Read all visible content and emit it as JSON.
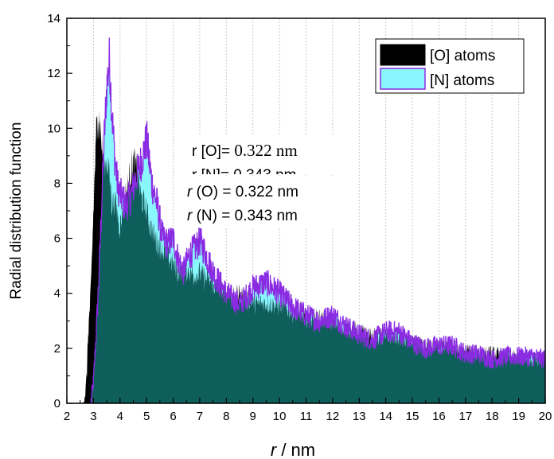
{
  "chart_data": {
    "type": "area",
    "xlabel_italic": "r",
    "xlabel_rest": " / nm",
    "ylabel": "Radial distribution function",
    "xlim": [
      2,
      20
    ],
    "ylim": [
      0,
      14
    ],
    "x_ticks": [
      "2",
      "3",
      "4",
      "5",
      "6",
      "7",
      "8",
      "9",
      "10",
      "11",
      "12",
      "13",
      "14",
      "15",
      "16",
      "17",
      "18",
      "19",
      "20"
    ],
    "y_ticks": [
      "0",
      "2",
      "4",
      "6",
      "8",
      "10",
      "12",
      "14"
    ],
    "grid_x": true,
    "grid_y": false,
    "legend_position": "top-right",
    "series": [
      {
        "name": "[O] atoms",
        "fill": "#000000",
        "x": [
          2.0,
          2.6,
          2.7,
          2.75,
          2.8,
          2.9,
          3.0,
          3.1,
          3.2,
          3.3,
          3.4,
          3.5,
          3.6,
          3.7,
          3.8,
          3.9,
          4.0,
          4.1,
          4.2,
          4.3,
          4.4,
          4.5,
          4.6,
          4.7,
          4.8,
          4.9,
          5.0,
          5.2,
          5.4,
          5.6,
          5.8,
          6.0,
          6.2,
          6.4,
          6.6,
          6.8,
          7.0,
          7.2,
          7.4,
          7.6,
          7.8,
          8.0,
          8.5,
          9.0,
          9.5,
          10.0,
          10.5,
          11.0,
          11.5,
          12.0,
          12.5,
          13.0,
          13.5,
          14.0,
          14.5,
          15.0,
          15.5,
          16.0,
          16.5,
          17.0,
          17.5,
          18.0,
          18.5,
          19.0,
          19.5,
          20.0
        ],
        "y": [
          0.0,
          0.0,
          0.4,
          1.0,
          2.5,
          4.0,
          7.0,
          9.8,
          10.6,
          9.5,
          8.5,
          8.8,
          8.2,
          7.2,
          7.3,
          6.8,
          6.4,
          6.9,
          7.5,
          7.9,
          8.4,
          8.8,
          8.6,
          8.0,
          7.4,
          7.2,
          6.9,
          6.2,
          5.8,
          5.5,
          5.3,
          5.0,
          4.7,
          4.6,
          4.8,
          4.6,
          4.7,
          4.5,
          4.4,
          4.2,
          4.1,
          4.0,
          3.9,
          3.6,
          3.6,
          3.5,
          3.3,
          3.1,
          3.1,
          2.9,
          2.7,
          2.6,
          2.4,
          2.4,
          2.3,
          2.2,
          2.1,
          2.0,
          2.0,
          1.9,
          1.8,
          1.8,
          1.7,
          1.6,
          1.6,
          1.6
        ]
      },
      {
        "name": "[N] atoms",
        "fill": "#8af7ff",
        "x": [
          2.0,
          2.9,
          3.0,
          3.1,
          3.2,
          3.3,
          3.4,
          3.5,
          3.6,
          3.7,
          3.8,
          3.9,
          4.0,
          4.2,
          4.4,
          4.6,
          4.8,
          5.0,
          5.2,
          5.4,
          5.6,
          5.8,
          6.0,
          6.2,
          6.4,
          6.6,
          6.8,
          7.0,
          7.2,
          7.4,
          7.6,
          7.8,
          8.0,
          8.5,
          9.0,
          9.5,
          10.0,
          10.5,
          11.0,
          11.5,
          12.0,
          12.5,
          13.0,
          13.5,
          14.0,
          14.5,
          15.0,
          15.5,
          16.0,
          16.5,
          17.0,
          17.5,
          18.0,
          18.5,
          19.0,
          19.5,
          20.0
        ],
        "y": [
          0.0,
          0.0,
          0.8,
          2.5,
          4.5,
          7.0,
          9.5,
          11.5,
          12.5,
          10.5,
          9.0,
          8.0,
          7.6,
          7.2,
          7.5,
          8.2,
          8.8,
          9.6,
          8.0,
          7.2,
          6.0,
          5.8,
          6.0,
          5.2,
          4.8,
          5.4,
          5.6,
          5.9,
          5.5,
          5.0,
          4.6,
          4.3,
          4.0,
          3.6,
          4.2,
          4.4,
          4.0,
          3.5,
          3.2,
          3.0,
          3.2,
          2.8,
          2.5,
          2.3,
          2.6,
          2.6,
          2.2,
          2.0,
          2.1,
          2.1,
          1.8,
          1.8,
          1.6,
          1.7,
          1.7,
          1.7,
          1.6
        ]
      }
    ],
    "annotations": {
      "a1_prefix": "r [O]= ",
      "a1_value": "0.322",
      "a1_unit": " nm",
      "a2_partial": "r [N]= 0.343 nm",
      "a3_italic": "r",
      "a3_rest": " (O) = 0.322 nm",
      "a4_italic": "r",
      "a4_rest": " (N) = 0.343 nm"
    }
  }
}
